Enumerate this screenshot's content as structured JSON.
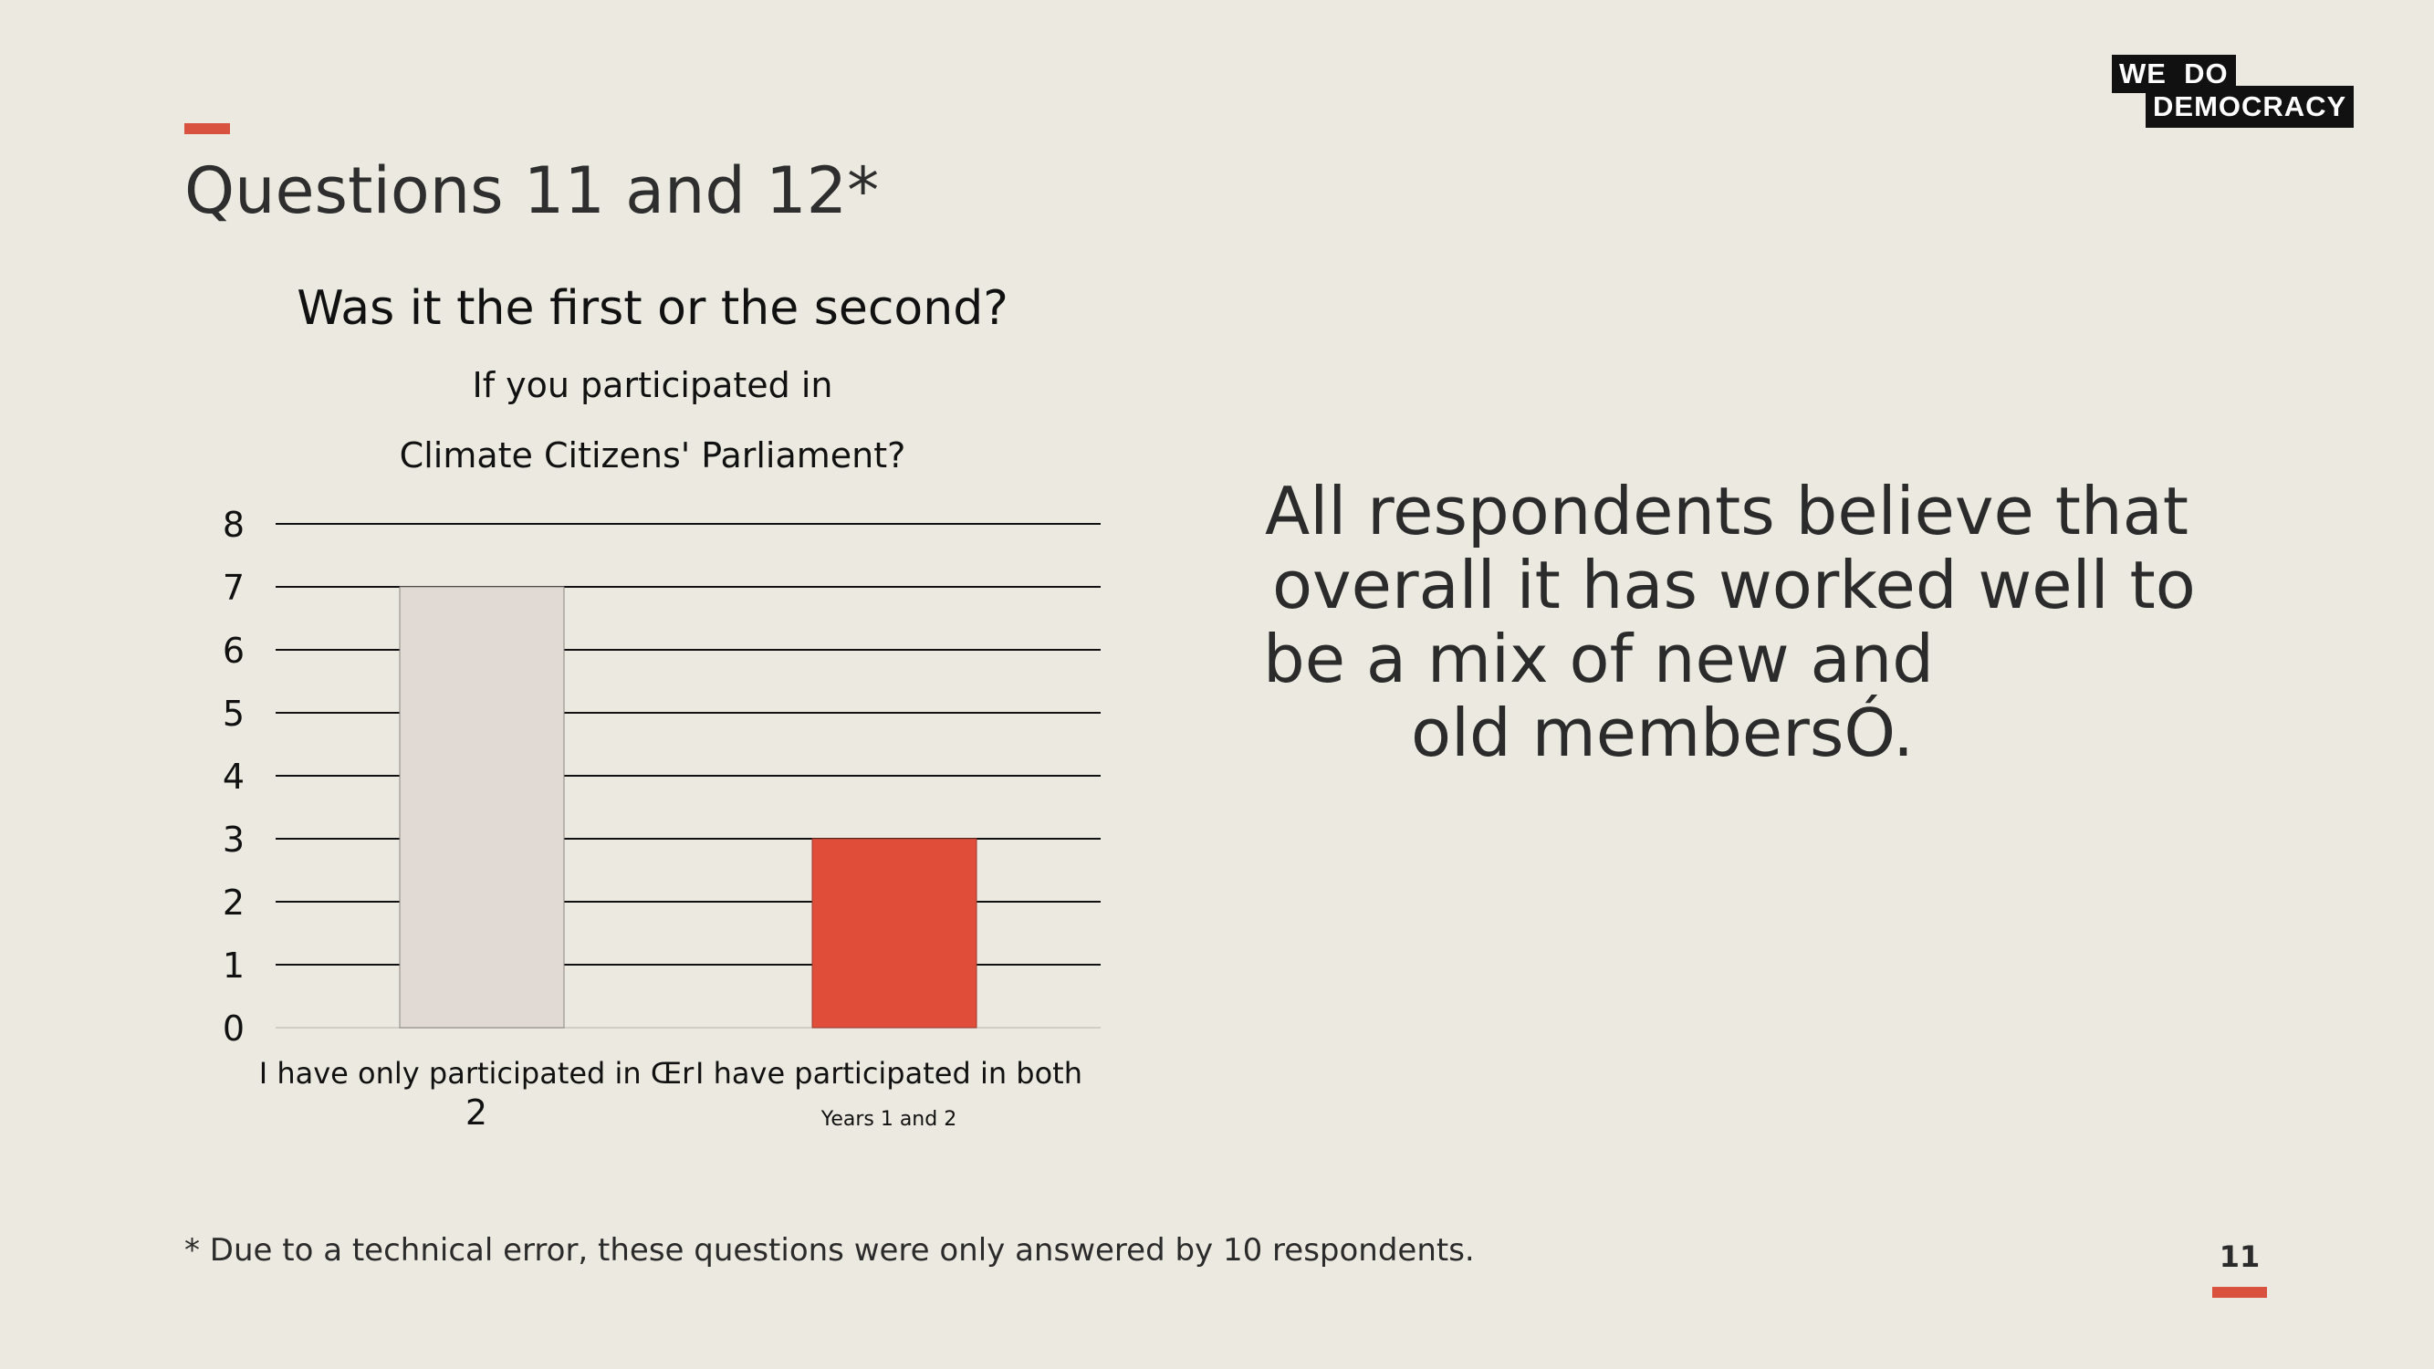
{
  "slide": {
    "title": "Questions 11 and 12*",
    "logo_line1": "WE  DO",
    "logo_line2": "DEMOCRACY",
    "quote_lines": [
      "All respondents believe that",
      "overall it has worked well to",
      "be a mix of new and",
      "old membersÓ."
    ],
    "footnote": "* Due to a technical error, these questions were only answered by 10 respondents.",
    "page_number": "11"
  },
  "colors": {
    "background": "#ECEAE0",
    "accent": "#D9523F",
    "bar_first": "#E1DAD4",
    "bar_second": "#E04E3A"
  },
  "chart_data": {
    "type": "bar",
    "title": "Was it the first or the second?",
    "subtitle_lines": [
      "If you participated in",
      "Climate Citizens' Parliament?"
    ],
    "categories": [
      [
        "I have only participated in Œr",
        "2"
      ],
      [
        "I have participated in both",
        "Years 1 and 2"
      ]
    ],
    "values": [
      7,
      3
    ],
    "bar_colors": [
      "#E1DAD4",
      "#E04E3A"
    ],
    "ylim": [
      0,
      8
    ],
    "yticks": [
      0,
      1,
      2,
      3,
      4,
      5,
      6,
      7,
      8
    ],
    "grid": true,
    "legend": false
  }
}
